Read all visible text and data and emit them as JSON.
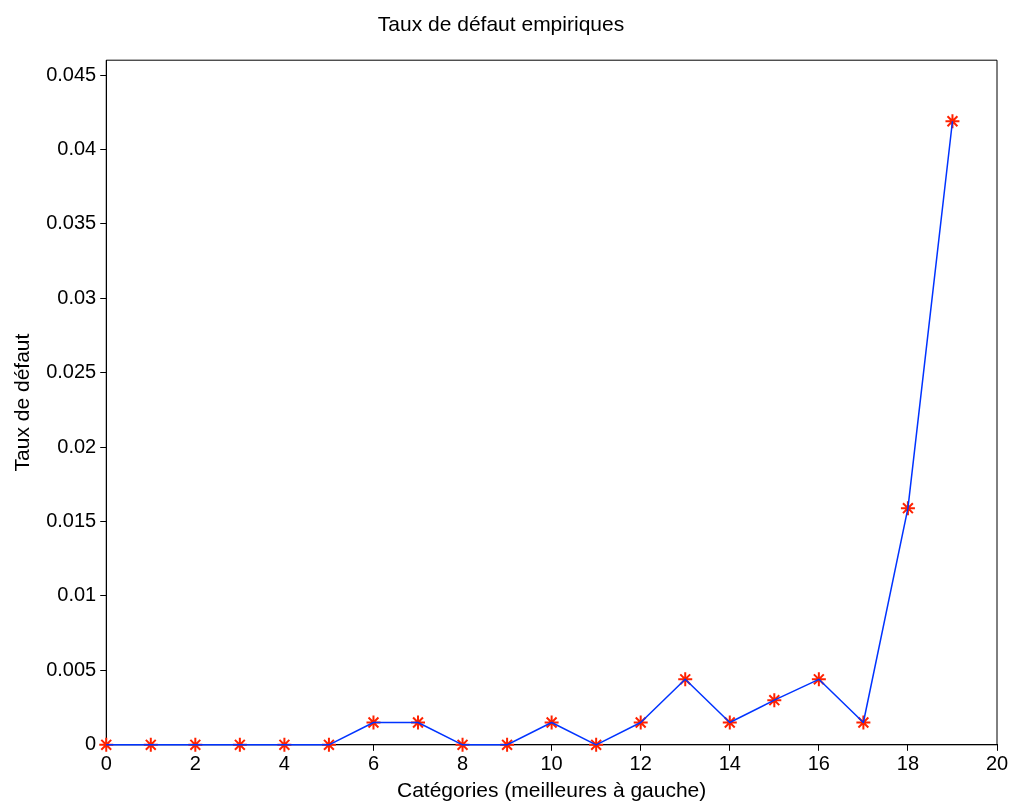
{
  "chart_data": {
    "type": "line",
    "title": "Taux de défaut empiriques",
    "xlabel": "Catégories (meilleures à gauche)",
    "ylabel": "Taux de défaut",
    "x": [
      0,
      1,
      2,
      3,
      4,
      5,
      6,
      7,
      8,
      9,
      10,
      11,
      12,
      13,
      14,
      15,
      16,
      17,
      18,
      19
    ],
    "series": [
      {
        "color": "#0033ff",
        "marker": "none",
        "values": [
          0,
          0,
          0,
          0,
          0,
          0,
          0.0015,
          0.0015,
          0,
          0,
          0.0015,
          0,
          0.0015,
          0.0044,
          0.0015,
          0.003,
          0.0044,
          0.0015,
          0.0159,
          0.0419
        ]
      },
      {
        "type": "scatter",
        "color": "#ff2200",
        "marker": "cross",
        "values": [
          0,
          0,
          0,
          0,
          0,
          0,
          0.0015,
          0.0015,
          0,
          0,
          0.0015,
          0,
          0.0015,
          0.0044,
          0.0015,
          0.003,
          0.0044,
          0.0015,
          0.0159,
          0.0419
        ]
      }
    ],
    "xlim": [
      0,
      20
    ],
    "xticks": [
      0,
      2,
      4,
      6,
      8,
      10,
      12,
      14,
      16,
      18,
      20
    ],
    "ylim": [
      0,
      0.046
    ],
    "yticks": [
      0,
      0.005,
      0.01,
      0.015,
      0.02,
      0.025,
      0.03,
      0.035,
      0.04,
      0.045
    ],
    "grid": false,
    "legend": false
  }
}
